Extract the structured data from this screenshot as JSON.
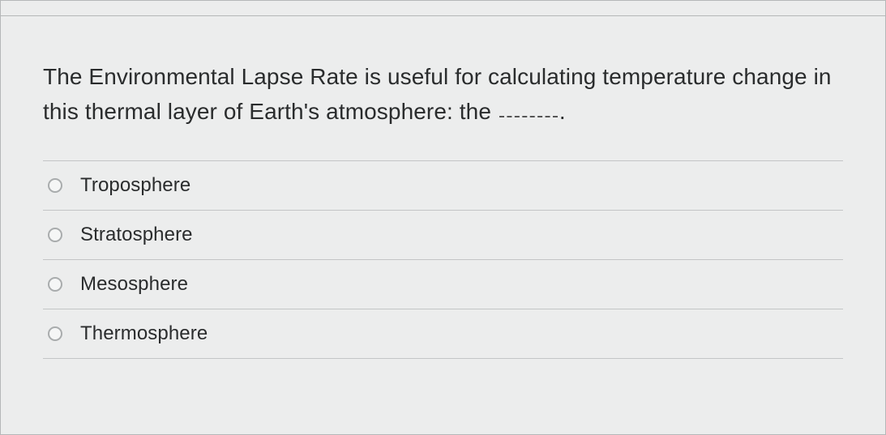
{
  "question": {
    "text_before_blank": "The Environmental Lapse Rate is useful for calculating temperature change in this thermal layer of Earth's atmosphere: the ",
    "text_after_blank": "."
  },
  "options": [
    {
      "label": "Troposphere"
    },
    {
      "label": "Stratosphere"
    },
    {
      "label": "Mesosphere"
    },
    {
      "label": "Thermosphere"
    }
  ],
  "colors": {
    "background": "#eceded",
    "border": "#b5b7b8",
    "divider": "#c3c5c6",
    "text": "#2a2c2d",
    "radio_border": "#a9acad"
  }
}
